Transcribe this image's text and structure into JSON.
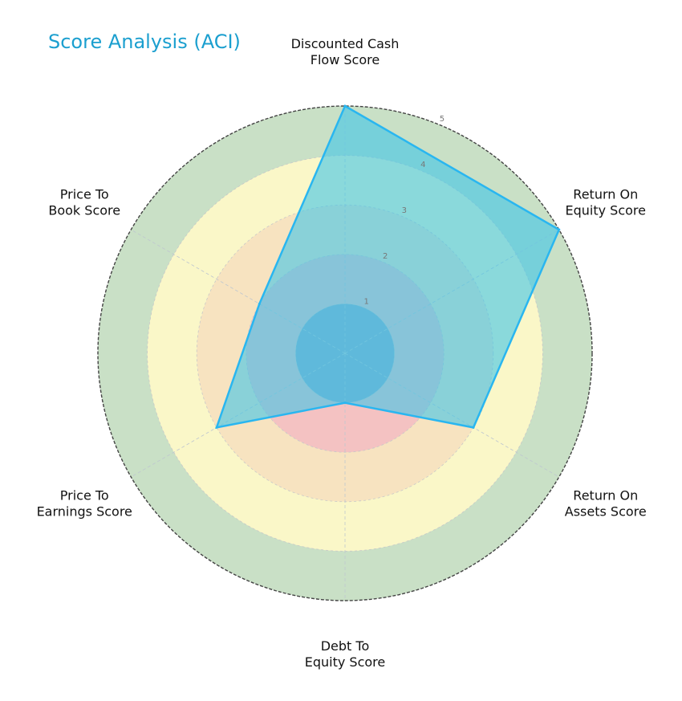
{
  "chart_data": {
    "type": "radar",
    "title": "Score Analysis (ACI)",
    "axes": [
      [
        "Discounted Cash",
        "Flow Score"
      ],
      [
        "Return On",
        "Equity Score"
      ],
      [
        "Return On",
        "Assets Score"
      ],
      [
        "Debt To",
        "Equity Score"
      ],
      [
        "Price To",
        "Earnings Score"
      ],
      [
        "Price To",
        "Book Score"
      ]
    ],
    "values": [
      5,
      5,
      3,
      1,
      3,
      2
    ],
    "rlim": [
      0,
      5
    ],
    "rticks": [
      "1",
      "2",
      "3",
      "4",
      "5"
    ],
    "bands": [
      {
        "from": 0,
        "to": 1,
        "color": "#8fa8c8"
      },
      {
        "from": 1,
        "to": 2,
        "color": "#f4c2c2"
      },
      {
        "from": 2,
        "to": 3,
        "color": "#f7e3c0"
      },
      {
        "from": 3,
        "to": 4,
        "color": "#faf7c8"
      },
      {
        "from": 4,
        "to": 5,
        "color": "#c9e0c6"
      }
    ],
    "series_color": "#29b6f0",
    "series_fill": "#40c4e8",
    "grid": true
  }
}
